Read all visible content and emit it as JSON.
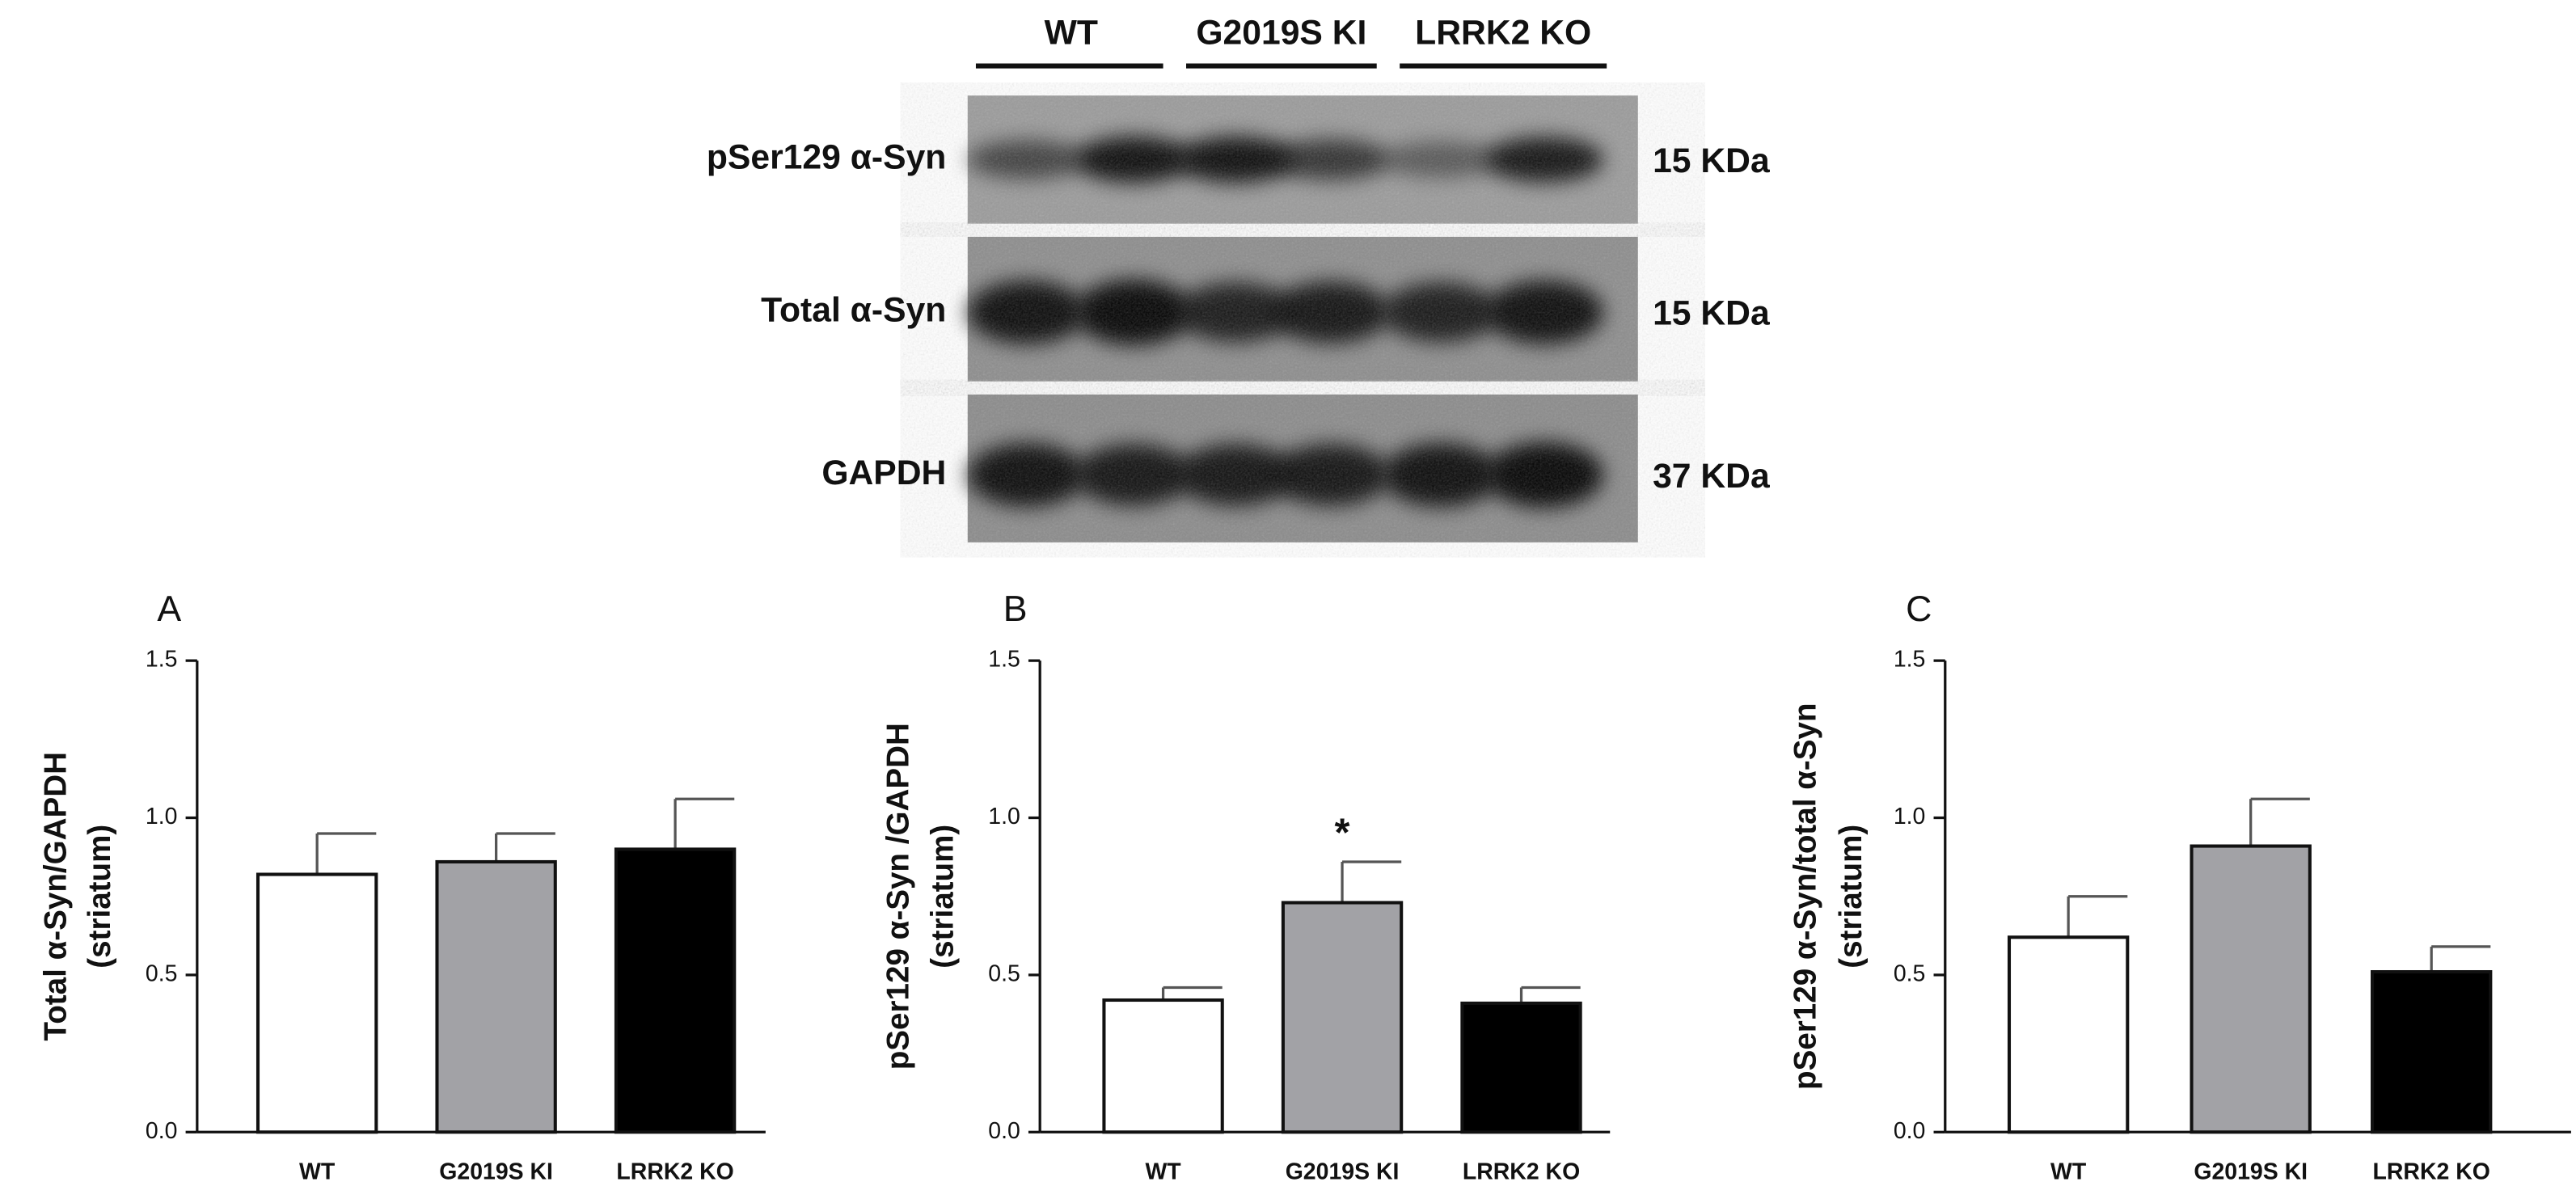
{
  "blot": {
    "groups": [
      "WT",
      "G2019S KI",
      "LRRK2 KO"
    ],
    "rows": [
      {
        "label": "pSer129 α-Syn",
        "size": "15 KDa"
      },
      {
        "label": "Total α-Syn",
        "size": "15 KDa"
      },
      {
        "label": "GAPDH",
        "size": "37 KDa"
      }
    ]
  },
  "chart_data": [
    {
      "type": "bar",
      "panel": "A",
      "ylabel": [
        "Total α-Syn/GAPDH",
        "(striatum)"
      ],
      "categories": [
        "WT",
        "G2019S KI",
        "LRRK2 KO"
      ],
      "values": [
        0.82,
        0.86,
        0.9
      ],
      "errors": [
        0.13,
        0.09,
        0.16
      ],
      "colors": [
        "#ffffff",
        "#a2a2a6",
        "#000000"
      ],
      "ylim": [
        0,
        1.5
      ],
      "yticks": [
        {
          "value": 0,
          "label": "0.0"
        },
        0.5,
        {
          "value": 1,
          "label": "1.0"
        },
        1.5
      ]
    },
    {
      "type": "bar",
      "panel": "B",
      "ylabel": [
        "pSer129 α-Syn /GAPDH",
        "(striatum)"
      ],
      "categories": [
        "WT",
        "G2019S KI",
        "LRRK2 KO"
      ],
      "values": [
        0.42,
        0.73,
        0.41
      ],
      "errors": [
        0.04,
        0.13,
        0.05
      ],
      "colors": [
        "#ffffff",
        "#a2a2a6",
        "#000000"
      ],
      "annotations": [
        null,
        "*",
        null
      ],
      "ylim": [
        0,
        1.5
      ],
      "yticks": [
        {
          "value": 0,
          "label": "0.0"
        },
        0.5,
        {
          "value": 1,
          "label": "1.0"
        },
        1.5
      ]
    },
    {
      "type": "bar",
      "panel": "C",
      "ylabel": [
        "pSer129 α-Syn/total α-Syn",
        "(striatum)"
      ],
      "categories": [
        "WT",
        "G2019S KI",
        "LRRK2 KO"
      ],
      "values": [
        0.62,
        0.91,
        0.51
      ],
      "errors": [
        0.13,
        0.15,
        0.08
      ],
      "colors": [
        "#ffffff",
        "#a2a2a6",
        "#000000"
      ],
      "ylim": [
        0,
        1.5
      ],
      "yticks": [
        {
          "value": 0,
          "label": "0.0"
        },
        0.5,
        {
          "value": 1,
          "label": "1.0"
        },
        1.5
      ]
    }
  ]
}
